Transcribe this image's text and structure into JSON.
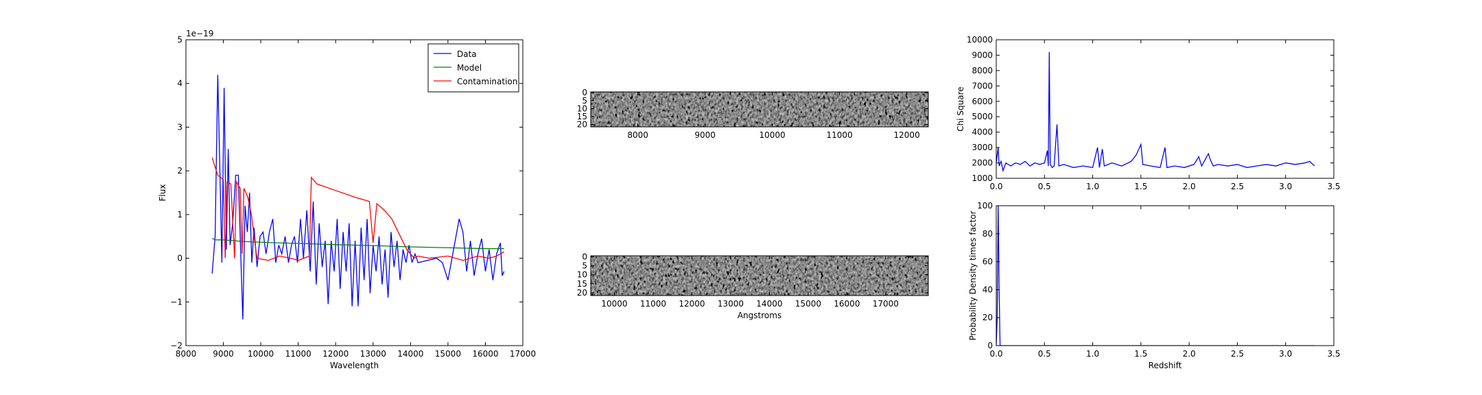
{
  "chart_data": [
    {
      "type": "line",
      "xlabel": "Wavelength",
      "ylabel": "Flux",
      "offset_label": "1e−19",
      "xlim": [
        8000,
        17000
      ],
      "xticks": [
        8000,
        9000,
        10000,
        11000,
        12000,
        13000,
        14000,
        15000,
        16000,
        17000
      ],
      "ylim": [
        -2,
        5
      ],
      "yticks": [
        {
          "value": -2,
          "label": "−2"
        },
        {
          "value": -1,
          "label": "−1"
        },
        0,
        1,
        2,
        3,
        4,
        5
      ],
      "legend": "upper right",
      "series": [
        {
          "name": "Data",
          "color": "#0000ff",
          "x": [
            8700,
            8780,
            8850,
            8920,
            8960,
            9020,
            9080,
            9130,
            9180,
            9250,
            9330,
            9400,
            9460,
            9520,
            9580,
            9640,
            9700,
            9760,
            9820,
            9900,
            9980,
            10060,
            10140,
            10230,
            10320,
            10400,
            10480,
            10560,
            10650,
            10740,
            10820,
            10900,
            10980,
            11060,
            11140,
            11230,
            11320,
            11400,
            11480,
            11560,
            11640,
            11720,
            11800,
            11880,
            11960,
            12040,
            12120,
            12200,
            12280,
            12360,
            12440,
            12520,
            12600,
            12680,
            12760,
            12840,
            12920,
            13000,
            13080,
            13160,
            13240,
            13320,
            13400,
            13480,
            13560,
            13640,
            13720,
            13800,
            13880,
            13960,
            14040,
            14120,
            14200,
            14700,
            14850,
            15000,
            15150,
            15300,
            15400,
            15500,
            15600,
            15700,
            15800,
            15900,
            16000,
            16100,
            16200,
            16300,
            16400,
            16450,
            16500
          ],
          "values": [
            -0.35,
            0.5,
            4.2,
            1.5,
            -0.1,
            3.9,
            0.2,
            2.5,
            0.3,
            0.8,
            1.9,
            1.9,
            0.2,
            -1.4,
            1.2,
            0.6,
            1.5,
            -0.1,
            0.7,
            -0.2,
            0.5,
            0.6,
            0.1,
            0.6,
            0.9,
            -0.1,
            0.3,
            0.1,
            0.5,
            -0.1,
            0.3,
            0.5,
            -0.1,
            0.9,
            0.0,
            1.1,
            -0.3,
            1.3,
            -0.6,
            0.8,
            -0.2,
            0.4,
            -1.05,
            0.4,
            -0.3,
            0.9,
            -0.7,
            0.6,
            -0.3,
            0.8,
            -1.1,
            0.4,
            -1.1,
            0.7,
            -0.5,
            0.9,
            -0.8,
            0.3,
            -0.3,
            0.5,
            -0.6,
            0.2,
            -0.9,
            0.6,
            -0.2,
            0.4,
            -0.5,
            0.2,
            -0.1,
            0.3,
            -0.1,
            0.1,
            -0.1,
            0.0,
            -0.1,
            -0.5,
            0.2,
            0.9,
            0.6,
            -0.3,
            0.4,
            -0.4,
            0.1,
            0.45,
            -0.3,
            0.2,
            -0.5,
            0.1,
            0.35,
            -0.4,
            -0.3
          ]
        },
        {
          "name": "Model",
          "color": "#008000",
          "x": [
            8700,
            8800,
            9000,
            9300,
            9600,
            9900,
            10200,
            10500,
            11000,
            12000,
            13000,
            14000,
            15000,
            16000,
            16500
          ],
          "values": [
            0.45,
            0.42,
            0.42,
            0.4,
            0.38,
            0.37,
            0.36,
            0.35,
            0.34,
            0.31,
            0.29,
            0.26,
            0.24,
            0.22,
            0.22
          ]
        },
        {
          "name": "Contamination",
          "color": "#ff0000",
          "x": [
            8700,
            8850,
            9000,
            9050,
            9100,
            9200,
            9300,
            9350,
            9450,
            9500,
            9550,
            9650,
            9750,
            9850,
            9900,
            10200,
            10500,
            10800,
            11000,
            11300,
            11350,
            11500,
            12000,
            12500,
            12900,
            13000,
            13100,
            13300,
            13500,
            13700,
            13900,
            14000,
            14100,
            14200,
            14500,
            15000,
            15400,
            15800,
            16100,
            16300,
            16500
          ],
          "values": [
            2.3,
            1.9,
            1.8,
            0.0,
            1.75,
            1.7,
            0.0,
            1.75,
            1.6,
            0.1,
            1.6,
            1.4,
            1.0,
            0.3,
            0.0,
            -0.05,
            0.05,
            0.0,
            -0.05,
            0.05,
            1.85,
            1.7,
            1.55,
            1.4,
            1.3,
            0.35,
            1.25,
            1.1,
            0.9,
            0.55,
            0.2,
            0.1,
            0.0,
            0.05,
            0.0,
            0.05,
            -0.05,
            0.05,
            0.0,
            0.05,
            0.15
          ]
        }
      ]
    },
    {
      "type": "image",
      "xlim": [
        7300,
        12320
      ],
      "xticks": [
        8000,
        9000,
        10000,
        11000,
        12000
      ],
      "ylim": [
        21.5,
        -0.5
      ],
      "yticks": [
        0,
        5,
        10,
        15,
        20
      ]
    },
    {
      "type": "image",
      "xlabel": "Angstroms",
      "xlim": [
        9390,
        18100
      ],
      "xticks": [
        10000,
        11000,
        12000,
        13000,
        14000,
        15000,
        16000,
        17000
      ],
      "ylim": [
        21.5,
        -0.5
      ],
      "yticks": [
        0,
        5,
        10,
        15,
        20
      ]
    },
    {
      "type": "line",
      "ylabel": "Chi Square",
      "xlim": [
        0,
        3.5
      ],
      "xticks": [
        {
          "value": 0,
          "label": "0.0"
        },
        0.5,
        {
          "value": 1,
          "label": "1.0"
        },
        1.5,
        {
          "value": 2,
          "label": "2.0"
        },
        2.5,
        {
          "value": 3,
          "label": "3.0"
        },
        3.5
      ],
      "ylim": [
        1000,
        10000
      ],
      "yticks": [
        1000,
        2000,
        3000,
        4000,
        5000,
        6000,
        7000,
        8000,
        9000,
        10000
      ],
      "series": [
        {
          "color": "#0000ff",
          "x": [
            0,
            0.02,
            0.03,
            0.05,
            0.07,
            0.1,
            0.15,
            0.2,
            0.25,
            0.3,
            0.35,
            0.4,
            0.45,
            0.5,
            0.53,
            0.54,
            0.55,
            0.56,
            0.58,
            0.6,
            0.63,
            0.65,
            0.7,
            0.8,
            0.9,
            1.0,
            1.05,
            1.07,
            1.1,
            1.12,
            1.2,
            1.3,
            1.4,
            1.45,
            1.5,
            1.52,
            1.6,
            1.7,
            1.75,
            1.77,
            1.85,
            1.95,
            2.05,
            2.1,
            2.13,
            2.2,
            2.22,
            2.25,
            2.3,
            2.4,
            2.5,
            2.6,
            2.7,
            2.8,
            2.9,
            3.0,
            3.1,
            3.2,
            3.25,
            3.3
          ],
          "values": [
            2000,
            3000,
            1800,
            2100,
            1500,
            2000,
            1800,
            2000,
            1900,
            2100,
            1800,
            2000,
            1900,
            2000,
            2800,
            1800,
            9200,
            1900,
            1700,
            1800,
            4500,
            1800,
            1900,
            1700,
            1800,
            1700,
            3000,
            1700,
            2900,
            1800,
            2000,
            1800,
            2100,
            2500,
            3200,
            1900,
            1800,
            1700,
            3000,
            1700,
            1800,
            1700,
            1900,
            2400,
            1800,
            2600,
            2200,
            1800,
            1900,
            1800,
            1900,
            1700,
            1800,
            1900,
            1800,
            2000,
            1900,
            2000,
            2100,
            1800
          ]
        }
      ]
    },
    {
      "type": "line",
      "xlabel": "Redshift",
      "ylabel": "Probability Density times factor",
      "xlim": [
        0,
        3.5
      ],
      "xticks": [
        {
          "value": 0,
          "label": "0.0"
        },
        0.5,
        {
          "value": 1,
          "label": "1.0"
        },
        1.5,
        {
          "value": 2,
          "label": "2.0"
        },
        2.5,
        {
          "value": 3,
          "label": "3.0"
        },
        3.5
      ],
      "ylim": [
        0,
        100
      ],
      "yticks": [
        0,
        20,
        40,
        60,
        80,
        100
      ],
      "series": [
        {
          "color": "#0000ff",
          "x": [
            0,
            0.01,
            0.02,
            0.03,
            0.04,
            0.05,
            1,
            2,
            3.3
          ],
          "values": [
            0,
            20,
            100,
            40,
            0,
            0,
            0,
            0,
            0
          ]
        }
      ]
    }
  ]
}
